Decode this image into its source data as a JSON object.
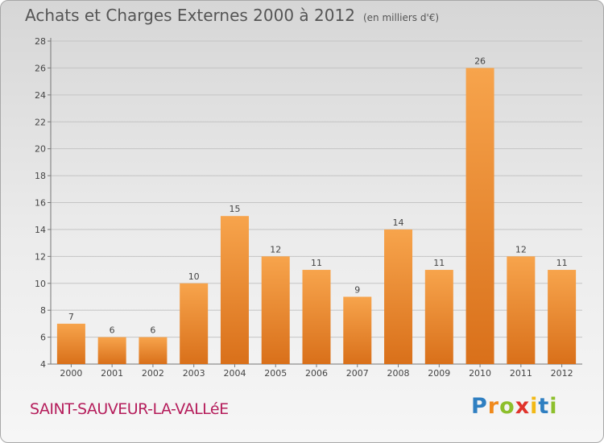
{
  "chart_data": {
    "type": "bar",
    "title": "Achats et Charges Externes 2000 à 2012",
    "subtitle": "(en milliers d'€)",
    "categories": [
      "2000",
      "2001",
      "2002",
      "2003",
      "2004",
      "2005",
      "2006",
      "2007",
      "2008",
      "2009",
      "2010",
      "2011",
      "2012"
    ],
    "values": [
      7,
      6,
      6,
      10,
      15,
      12,
      11,
      9,
      14,
      11,
      26,
      12,
      11
    ],
    "ylim": [
      4,
      28
    ],
    "yticks": [
      "4",
      "6",
      "8",
      "10",
      "12",
      "14",
      "16",
      "18",
      "20",
      "22",
      "24",
      "26",
      "28"
    ],
    "xlabel": "",
    "ylabel": "",
    "grid": true,
    "bar_color_top": "#f7a44c",
    "bar_color_bottom": "#d9701a"
  },
  "footer": {
    "town": "SAINT-SAUVEUR-LA-VALLéE",
    "logo_letters": [
      "P",
      "r",
      "o",
      "x",
      "i",
      "t",
      "i"
    ],
    "logo_colors": [
      "#2f7fc1",
      "#f08a1c",
      "#8dbf2c",
      "#e0332b",
      "#f2b916",
      "#2f7fc1",
      "#8dbf2c"
    ]
  }
}
